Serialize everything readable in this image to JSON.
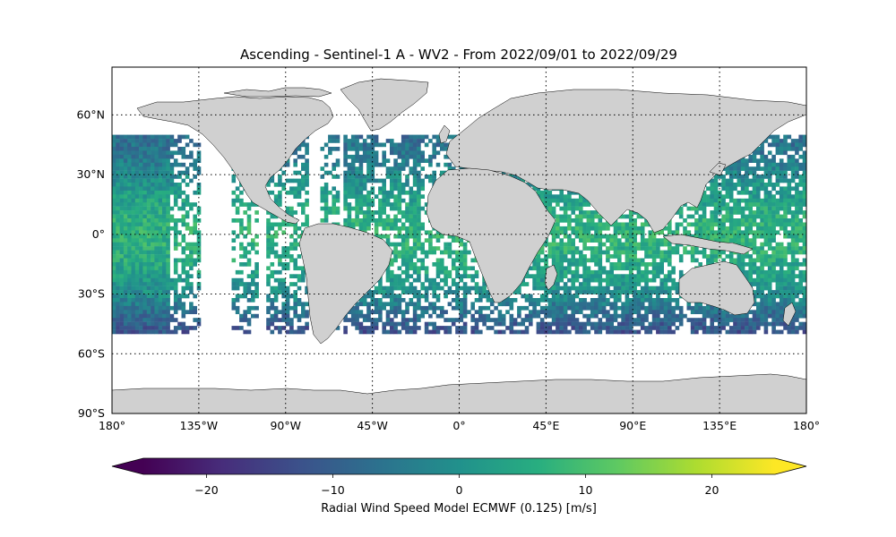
{
  "title": "Ascending - Sentinel-1 A - WV2 - From 2022/09/01 to 2022/09/29",
  "map": {
    "projection": "plate-carree",
    "lon_range": [
      -180,
      180
    ],
    "lat_range": [
      -90,
      84
    ],
    "gridlines": "dotted",
    "lat_ticks": [
      {
        "value": 60,
        "label": "60°N"
      },
      {
        "value": 30,
        "label": "30°N"
      },
      {
        "value": 0,
        "label": "0°"
      },
      {
        "value": -30,
        "label": "30°S"
      },
      {
        "value": -60,
        "label": "60°S"
      },
      {
        "value": -90,
        "label": "90°S"
      }
    ],
    "lon_ticks": [
      {
        "value": -180,
        "label": "180°"
      },
      {
        "value": -135,
        "label": "135°W"
      },
      {
        "value": -90,
        "label": "90°W"
      },
      {
        "value": -45,
        "label": "45°W"
      },
      {
        "value": 0,
        "label": "0°"
      },
      {
        "value": 45,
        "label": "45°E"
      },
      {
        "value": 90,
        "label": "90°E"
      },
      {
        "value": 135,
        "label": "135°E"
      },
      {
        "value": 180,
        "label": "180°"
      }
    ],
    "land_color": "#d0d0d0",
    "coast_color": "#000000",
    "data_lat_range": [
      -50,
      50
    ]
  },
  "colorbar": {
    "label": "Radial Wind Speed Model ECMWF (0.125) [m/s]",
    "range": [
      -25,
      25
    ],
    "extend": "both",
    "colormap": "viridis",
    "ticks": [
      {
        "value": -20,
        "label": "−20"
      },
      {
        "value": -10,
        "label": "−10"
      },
      {
        "value": 0,
        "label": "0"
      },
      {
        "value": 10,
        "label": "10"
      },
      {
        "value": 20,
        "label": "20"
      }
    ]
  }
}
